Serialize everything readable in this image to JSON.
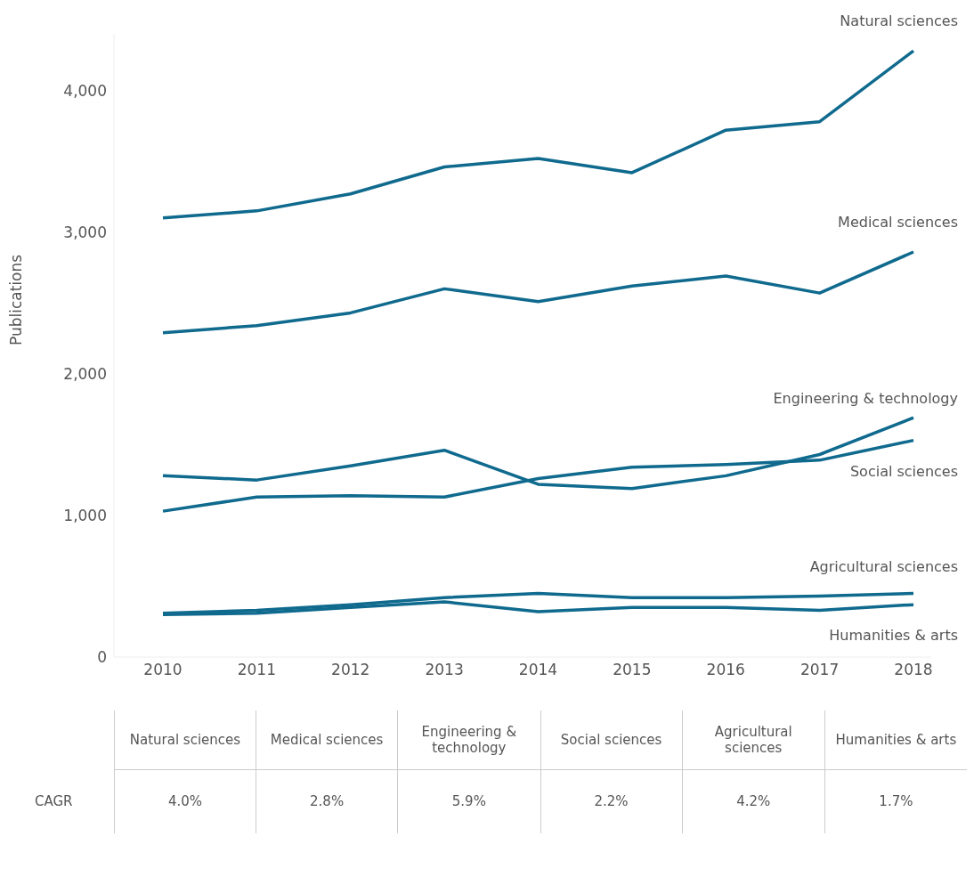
{
  "chart_data": {
    "type": "line",
    "ylabel": "Publications",
    "categories": [
      "2010",
      "2011",
      "2012",
      "2013",
      "2014",
      "2015",
      "2016",
      "2017",
      "2018"
    ],
    "series": [
      {
        "name": "Natural sciences",
        "color": "#0f6a8e",
        "values": [
          3100,
          3150,
          3270,
          3460,
          3520,
          3420,
          3720,
          3780,
          4280
        ]
      },
      {
        "name": "Medical sciences",
        "color": "#0f6a8e",
        "values": [
          2290,
          2340,
          2430,
          2600,
          2510,
          2620,
          2690,
          2570,
          2860
        ]
      },
      {
        "name": "Engineering & technology",
        "color": "#0f6a8e",
        "values": [
          1280,
          1250,
          1350,
          1460,
          1220,
          1190,
          1280,
          1430,
          1690
        ]
      },
      {
        "name": "Social sciences",
        "color": "#0f6a8e",
        "values": [
          1030,
          1130,
          1140,
          1130,
          1260,
          1340,
          1360,
          1390,
          1530
        ]
      },
      {
        "name": "Agricultural sciences",
        "color": "#0f6a8e",
        "values": [
          310,
          330,
          370,
          420,
          450,
          420,
          420,
          430,
          450
        ]
      },
      {
        "name": "Humanities & arts",
        "color": "#0f6a8e",
        "values": [
          300,
          310,
          350,
          390,
          320,
          350,
          350,
          330,
          370
        ]
      }
    ],
    "ylim": [
      0,
      4400
    ],
    "yticks": [
      0,
      {
        "value": 1000,
        "label": "1,000"
      },
      {
        "value": 2000,
        "label": "2,000"
      },
      {
        "value": 3000,
        "label": "3,000"
      },
      {
        "value": 4000,
        "label": "4,000"
      }
    ],
    "grid": false,
    "legend": false,
    "marker": "none",
    "line_style": "solid",
    "annotations": [
      "CAGR",
      "4.0%",
      "2.8%",
      "5.9%",
      "2.2%",
      "4.2%",
      "1.7%"
    ]
  }
}
